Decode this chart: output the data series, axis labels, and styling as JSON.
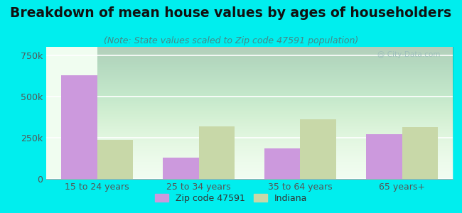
{
  "title": "Breakdown of mean house values by ages of householders",
  "subtitle": "(Note: State values scaled to Zip code 47591 population)",
  "categories": [
    "15 to 24 years",
    "25 to 34 years",
    "35 to 64 years",
    "65 years+"
  ],
  "zip_values": [
    630000,
    130000,
    185000,
    270000
  ],
  "indiana_values": [
    235000,
    320000,
    360000,
    315000
  ],
  "zip_color": "#cc99dd",
  "indiana_color": "#c8d8a8",
  "background_outer": "#00eeee",
  "background_inner_top": "#e8f8e8",
  "background_inner_bottom": "#ffffff",
  "ylim": [
    0,
    800000
  ],
  "yticks": [
    0,
    250000,
    500000,
    750000
  ],
  "ytick_labels": [
    "0",
    "250k",
    "500k",
    "750k"
  ],
  "legend_zip_label": "Zip code 47591",
  "legend_indiana_label": "Indiana",
  "bar_width": 0.35,
  "title_fontsize": 13.5,
  "subtitle_fontsize": 9,
  "tick_fontsize": 9,
  "legend_fontsize": 9
}
